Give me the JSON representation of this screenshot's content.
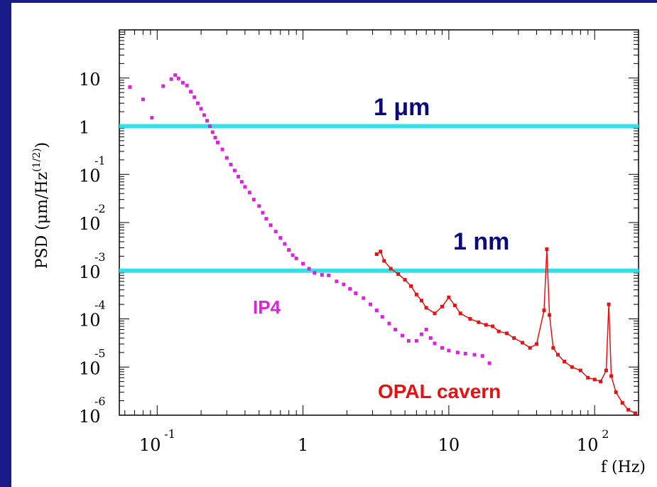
{
  "chart_data": {
    "type": "scatter",
    "xscale": "log",
    "yscale": "log",
    "xlim": [
      0.055,
      200
    ],
    "ylim": [
      1e-06,
      100
    ],
    "xlabel": "f (Hz)",
    "ylabel_main": "PSD (μm/Hz",
    "ylabel_exp": "(1/2)",
    "ylabel_close": ")",
    "x_ticks": [
      {
        "value": 0.1,
        "mant": "10",
        "exp": "-1"
      },
      {
        "value": 1,
        "mant": "1",
        "exp": ""
      },
      {
        "value": 10,
        "mant": "10",
        "exp": ""
      },
      {
        "value": 100,
        "mant": "10",
        "exp": "2"
      }
    ],
    "y_ticks": [
      {
        "value": 10,
        "mant": "10",
        "exp": ""
      },
      {
        "value": 1,
        "mant": "1",
        "exp": ""
      },
      {
        "value": 0.1,
        "mant": "10",
        "exp": "-1"
      },
      {
        "value": 0.01,
        "mant": "10",
        "exp": "-2"
      },
      {
        "value": 0.001,
        "mant": "10",
        "exp": "-3"
      },
      {
        "value": 0.0001,
        "mant": "10",
        "exp": "-4"
      },
      {
        "value": 1e-05,
        "mant": "10",
        "exp": "-5"
      },
      {
        "value": 1e-06,
        "mant": "10",
        "exp": "-6"
      }
    ],
    "reference_lines": [
      {
        "label": "1 μm",
        "y": 1,
        "color": "#33e0e8"
      },
      {
        "label": "1 nm",
        "y": 0.001,
        "color": "#33e0e8"
      }
    ],
    "series": [
      {
        "name": "IP4",
        "color": "#e020e0",
        "points": [
          [
            0.065,
            6.5
          ],
          [
            0.08,
            3.6
          ],
          [
            0.092,
            1.5
          ],
          [
            0.11,
            6.8
          ],
          [
            0.125,
            9.5
          ],
          [
            0.133,
            11.5
          ],
          [
            0.14,
            9.8
          ],
          [
            0.15,
            8.0
          ],
          [
            0.16,
            7.0
          ],
          [
            0.17,
            5.2
          ],
          [
            0.18,
            4.0
          ],
          [
            0.19,
            3.0
          ],
          [
            0.2,
            2.3
          ],
          [
            0.21,
            1.7
          ],
          [
            0.22,
            1.3
          ],
          [
            0.23,
            1.0
          ],
          [
            0.24,
            0.75
          ],
          [
            0.25,
            0.58
          ],
          [
            0.26,
            0.46
          ],
          [
            0.28,
            0.33
          ],
          [
            0.3,
            0.22
          ],
          [
            0.32,
            0.16
          ],
          [
            0.34,
            0.12
          ],
          [
            0.36,
            0.09
          ],
          [
            0.38,
            0.07
          ],
          [
            0.4,
            0.055
          ],
          [
            0.43,
            0.042
          ],
          [
            0.46,
            0.03
          ],
          [
            0.5,
            0.022
          ],
          [
            0.53,
            0.016
          ],
          [
            0.56,
            0.012
          ],
          [
            0.6,
            0.0088
          ],
          [
            0.65,
            0.0065
          ],
          [
            0.7,
            0.0048
          ],
          [
            0.75,
            0.0036
          ],
          [
            0.8,
            0.0027
          ],
          [
            0.85,
            0.0021
          ],
          [
            0.9,
            0.0018
          ],
          [
            1.0,
            0.0014
          ],
          [
            1.1,
            0.0011
          ],
          [
            1.2,
            0.0009
          ],
          [
            1.35,
            0.00082
          ],
          [
            1.5,
            0.0008
          ],
          [
            1.7,
            0.0006
          ],
          [
            1.9,
            0.00052
          ],
          [
            2.1,
            0.00042
          ],
          [
            2.3,
            0.00034
          ],
          [
            2.6,
            0.00027
          ],
          [
            2.9,
            0.0002
          ],
          [
            3.2,
            0.00015
          ],
          [
            3.5,
            0.00011
          ],
          [
            3.9,
            8e-05
          ],
          [
            4.3,
            6e-05
          ],
          [
            4.8,
            4.5e-05
          ],
          [
            5.3,
            3.5e-05
          ],
          [
            6.0,
            3.5e-05
          ],
          [
            6.5,
            4.8e-05
          ],
          [
            7.0,
            6e-05
          ],
          [
            7.5,
            4e-05
          ],
          [
            8.0,
            3.1e-05
          ],
          [
            9.0,
            2.5e-05
          ],
          [
            10.0,
            2.2e-05
          ],
          [
            11.5,
            2e-05
          ],
          [
            13.0,
            1.9e-05
          ],
          [
            15.0,
            1.8e-05
          ],
          [
            17.0,
            1.7e-05
          ],
          [
            19.0,
            1.2e-05
          ]
        ]
      },
      {
        "name": "OPAL cavern",
        "color": "#e81010",
        "points": [
          [
            3.2,
            0.0022
          ],
          [
            3.4,
            0.0025
          ],
          [
            3.6,
            0.0016
          ],
          [
            4.0,
            0.0011
          ],
          [
            4.5,
            0.00085
          ],
          [
            5.0,
            0.00065
          ],
          [
            5.5,
            0.00048
          ],
          [
            6.0,
            0.00032
          ],
          [
            6.5,
            0.00024
          ],
          [
            7.0,
            0.00017
          ],
          [
            8.0,
            0.00013
          ],
          [
            9.0,
            0.00018
          ],
          [
            10.0,
            0.00028
          ],
          [
            11.0,
            0.00019
          ],
          [
            12.0,
            0.00013
          ],
          [
            14.0,
            0.0001
          ],
          [
            16.0,
            8.5e-05
          ],
          [
            18.0,
            7.5e-05
          ],
          [
            20.0,
            7e-05
          ],
          [
            22.0,
            5.5e-05
          ],
          [
            25.0,
            5e-05
          ],
          [
            28.0,
            4e-05
          ],
          [
            32.0,
            3.2e-05
          ],
          [
            36.0,
            2.5e-05
          ],
          [
            40.0,
            3e-05
          ],
          [
            45.0,
            0.00015
          ],
          [
            47.0,
            0.0028
          ],
          [
            49.0,
            0.00012
          ],
          [
            52.0,
            2.5e-05
          ],
          [
            56.0,
            1.8e-05
          ],
          [
            62.0,
            1.3e-05
          ],
          [
            70.0,
            1e-05
          ],
          [
            80.0,
            8.5e-06
          ],
          [
            90.0,
            6e-06
          ],
          [
            100.0,
            5.5e-06
          ],
          [
            110.0,
            5e-06
          ],
          [
            120.0,
            8.5e-06
          ],
          [
            125.0,
            0.0002
          ],
          [
            130.0,
            6.5e-06
          ],
          [
            140.0,
            3e-06
          ],
          [
            155.0,
            1.8e-06
          ],
          [
            170.0,
            1.3e-06
          ],
          [
            190.0,
            1.1e-06
          ]
        ]
      }
    ],
    "annotations": [
      {
        "text": "1 μm",
        "color": "#0a0a78"
      },
      {
        "text": "1 nm",
        "color": "#0a0a78"
      },
      {
        "text": "IP4",
        "color": "#e020e0"
      },
      {
        "text": "OPAL cavern",
        "color": "#e81010"
      }
    ]
  }
}
